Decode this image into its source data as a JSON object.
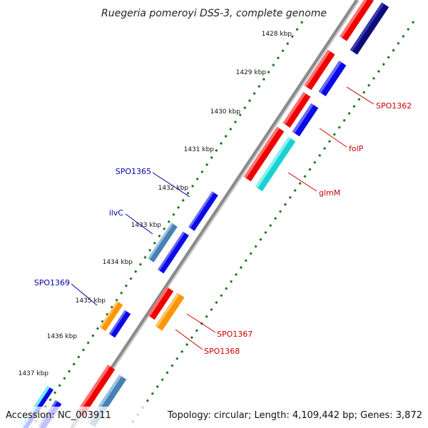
{
  "title": "Ruegeria pomeroyi DSS-3, complete genome",
  "footer": {
    "accession": "Accession: NC_003911",
    "stats": "Topology: circular; Length: 4,109,442 bp; Genes: 3,872"
  },
  "ticks": [
    "1428 kbp",
    "1429 kbp",
    "1430 kbp",
    "1431 kbp",
    "1432 kbp",
    "1433 kbp",
    "1434 kbp",
    "1435 kbp",
    "1436 kbp",
    "1437 kbp"
  ],
  "gene_labels": {
    "spo1365": "SPO1365",
    "ilvc": "ilvC",
    "spo1369": "SPO1369",
    "spo1362": "SPO1362",
    "folp": "folP",
    "glmm": "glmM",
    "spo1367": "SPO1367",
    "spo1368": "SPO1368"
  },
  "colors": {
    "forward_label": "#0000aa",
    "reverse_label": "#cc0000",
    "backbone": "#8a8a8a",
    "tick_dots": "#1a7a1a",
    "red": "#ee0000",
    "blue": "#0a0ae6",
    "navy": "#0b0b7a",
    "cyan": "#19d3d3",
    "orange": "#ff9500",
    "steel": "#4682b4"
  }
}
